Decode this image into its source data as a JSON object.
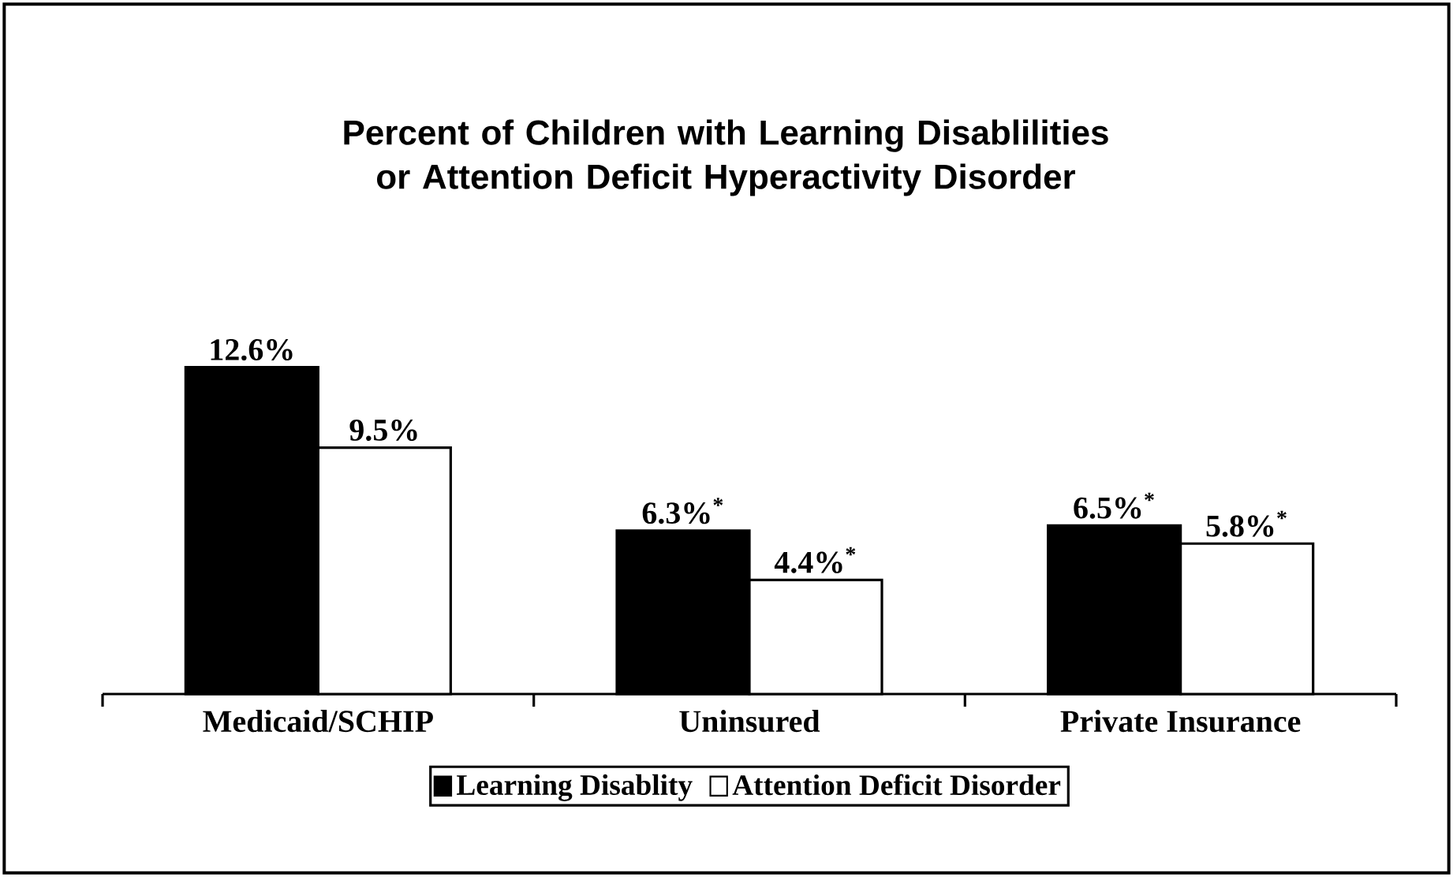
{
  "chart_data": {
    "type": "bar",
    "title": "Percent of Children with Learning Disablilities or Attention Deficit Hyperactivity Disorder",
    "categories": [
      "Medicaid/SCHIP",
      "Uninsured",
      "Private Insurance"
    ],
    "series": [
      {
        "name": "Learning Disablity",
        "color": "#000000",
        "values": [
          12.6,
          6.3,
          6.5
        ],
        "value_labels": [
          "12.6%",
          "6.3%$^{*}$",
          "6.5%$^{*}$"
        ]
      },
      {
        "name": "Attention Deficit Disorder",
        "color": "#ffffff",
        "values": [
          9.5,
          4.4,
          5.8
        ],
        "value_labels": [
          "9.5%",
          "4.4%$^{*}$",
          "5.8%$^{*}$"
        ]
      }
    ],
    "legend": "bottom"
  }
}
